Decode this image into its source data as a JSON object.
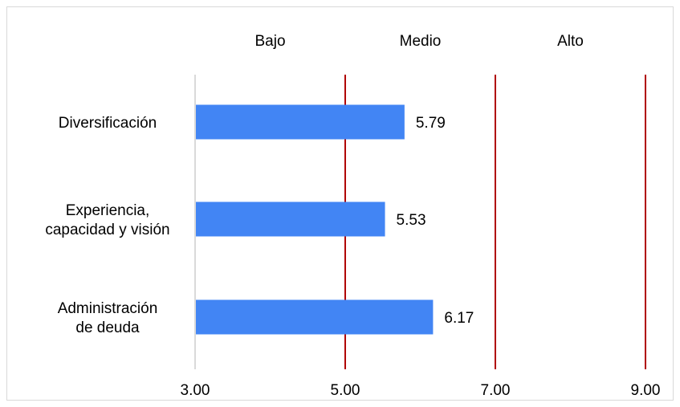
{
  "chart_data": {
    "type": "bar",
    "orientation": "horizontal",
    "categories": [
      [
        "Diversificación"
      ],
      [
        "Experiencia,",
        "capacidad y visión"
      ],
      [
        "Administración",
        "de deuda"
      ]
    ],
    "values": [
      5.79,
      5.53,
      6.17
    ],
    "value_labels": [
      "5.79",
      "5.53",
      "6.17"
    ],
    "x_ticks": [
      3,
      5,
      7,
      9
    ],
    "x_tick_labels": [
      "3.00",
      "5.00",
      "7.00",
      "9.00"
    ],
    "xlim": [
      3,
      9
    ],
    "reference_lines": [
      5,
      7,
      9
    ],
    "zone_labels": [
      {
        "label": "Bajo",
        "center": 4
      },
      {
        "label": "Medio",
        "center": 6
      },
      {
        "label": "Alto",
        "center": 8
      }
    ],
    "bar_color": "#4285f4",
    "reference_line_color": "#b00000",
    "axis_line_color": "#d9d9d9",
    "grid": false
  }
}
